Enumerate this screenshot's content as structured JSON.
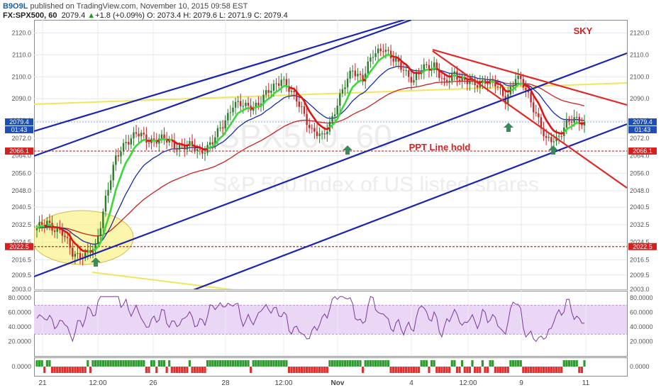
{
  "header": {
    "author": "B9O9L",
    "published_text": "published on TradingView.com, November 10, 2015 09:58 EST",
    "symbol": "FX:SPX500, 60",
    "last": "2079.4",
    "arrow": "▲",
    "change": "+1.8 (+0.09%)",
    "ohlc": "O: 2073.4 H: 2079.6 L: 2071.9 C: 2079.4"
  },
  "watermark": {
    "symbol": "SPX500, 60",
    "description": "S&P 500 Index of US listed shares"
  },
  "annotations": {
    "sky": "SKY",
    "ppt": "PPT Line hold"
  },
  "price_tags": {
    "current": "2079.4",
    "countdown": "01:43",
    "ppt_level": "2066.1",
    "low_level": "2022.5"
  },
  "colors": {
    "candle_up": "#2c7a2c",
    "candle_down": "#c62828",
    "ema_fast_up": "#3ad83a",
    "ema_fast_down": "#e01414",
    "ema_blue": "#1a2aaa",
    "ema_red": "#cc2020",
    "channel_blue": "#1a23b4",
    "channel_red": "#e02828",
    "yellow_line": "#f0e65a",
    "rsi": "#7a3a9a",
    "rsi_band": "#ead6f5",
    "tag_blue": "#1d4fb5",
    "tag_red": "#d62020",
    "arrow_green": "#3b8a5a"
  },
  "chart_data": [
    {
      "type": "candlestick",
      "title": "",
      "ylim": [
        2003,
        2126
      ],
      "y_ticks": [
        "2003.0",
        "2009.5",
        "2016.5",
        "2024.5",
        "2032.5",
        "2040.5",
        "2048.0",
        "2056.0",
        "2064.0",
        "2072.0",
        "2080.0",
        "2090.0",
        "2100.0",
        "2110.0",
        "2120.0"
      ],
      "x_ticks": [
        "21",
        "12:00",
        "26",
        "28",
        "12:00",
        "Nov",
        "4",
        "12:00",
        "9",
        "11"
      ],
      "horizontal_levels": [
        2066.1,
        2022.5
      ],
      "close_anchors": [
        [
          0,
          2030
        ],
        [
          4,
          2034
        ],
        [
          10,
          2028
        ],
        [
          14,
          2020
        ],
        [
          19,
          2018
        ],
        [
          23,
          2022
        ],
        [
          27,
          2045
        ],
        [
          31,
          2062
        ],
        [
          35,
          2071
        ],
        [
          39,
          2074
        ],
        [
          43,
          2071
        ],
        [
          48,
          2072
        ],
        [
          54,
          2069
        ],
        [
          60,
          2068
        ],
        [
          64,
          2066
        ],
        [
          69,
          2070
        ],
        [
          73,
          2078
        ],
        [
          77,
          2088
        ],
        [
          82,
          2086
        ],
        [
          87,
          2088
        ],
        [
          92,
          2094
        ],
        [
          96,
          2100
        ],
        [
          100,
          2092
        ],
        [
          104,
          2086
        ],
        [
          108,
          2075
        ],
        [
          112,
          2072
        ],
        [
          116,
          2082
        ],
        [
          120,
          2093
        ],
        [
          124,
          2104
        ],
        [
          128,
          2099
        ],
        [
          132,
          2110
        ],
        [
          136,
          2114
        ],
        [
          140,
          2107
        ],
        [
          144,
          2104
        ],
        [
          148,
          2098
        ],
        [
          152,
          2104
        ],
        [
          156,
          2106
        ],
        [
          160,
          2096
        ],
        [
          164,
          2102
        ],
        [
          168,
          2098
        ],
        [
          172,
          2096
        ],
        [
          176,
          2099
        ],
        [
          180,
          2096
        ],
        [
          184,
          2090
        ],
        [
          188,
          2100
        ],
        [
          192,
          2094
        ],
        [
          196,
          2084
        ],
        [
          200,
          2070
        ],
        [
          204,
          2072
        ],
        [
          208,
          2079
        ],
        [
          212,
          2080
        ],
        [
          215,
          2079.4
        ]
      ]
    },
    {
      "type": "line",
      "title": "",
      "ylim": [
        0,
        90
      ],
      "y_ticks": [
        "20.0000",
        "40.0000",
        "60.0000",
        "80.0000"
      ],
      "band": [
        30,
        70
      ]
    },
    {
      "type": "bar",
      "title": "",
      "y_ticks": [
        "0.0000"
      ]
    }
  ]
}
